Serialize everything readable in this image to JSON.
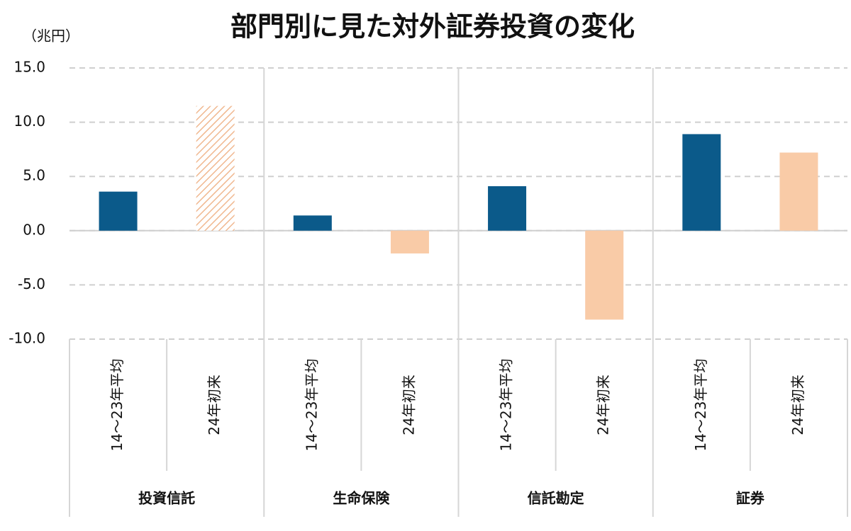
{
  "chart_data": {
    "type": "bar",
    "title": "部門別に見た対外証券投資の変化",
    "y_unit": "（兆円）",
    "categories": [
      "投資信託",
      "生命保険",
      "信託勘定",
      "証券"
    ],
    "series": [
      {
        "name": "14～23年平均",
        "color": "#0b5a8a",
        "values": [
          3.6,
          1.4,
          4.1,
          8.9
        ]
      },
      {
        "name": "24年初来",
        "color": "#f9cba7",
        "values": [
          11.5,
          -2.1,
          -8.2,
          7.2
        ],
        "hatched": [
          true,
          false,
          false,
          false
        ]
      }
    ],
    "ylim": [
      -10,
      15
    ],
    "yticks": [
      {
        "value": -10,
        "label": "-10.0"
      },
      {
        "value": -5,
        "label": "-5.0"
      },
      {
        "value": 0,
        "label": "0.0"
      },
      {
        "value": 5,
        "label": "5.0"
      },
      {
        "value": 10,
        "label": "10.0"
      },
      {
        "value": 15,
        "label": "15.0"
      }
    ],
    "grid": true
  }
}
